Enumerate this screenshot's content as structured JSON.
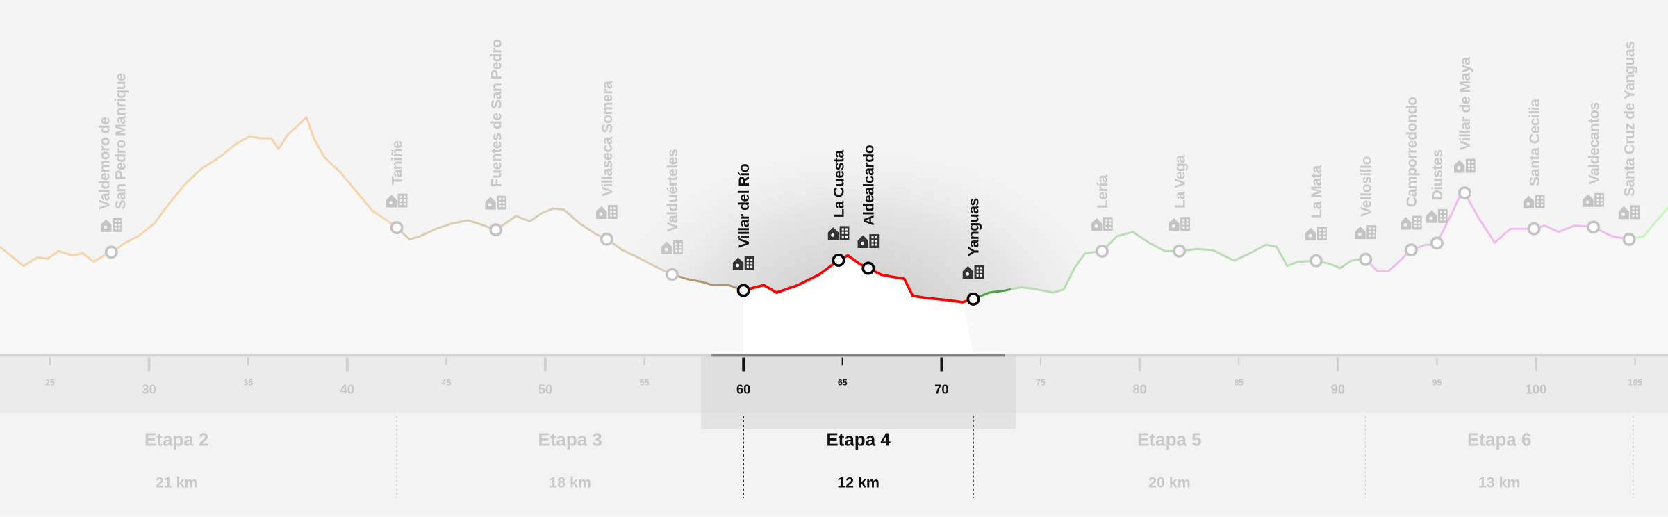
{
  "chart_data": {
    "type": "area",
    "xlabel": "",
    "ylabel": "",
    "xlim": [
      22.6,
      106.6
    ],
    "x_ticks_major": [
      30,
      40,
      50,
      60,
      70,
      80,
      90,
      100
    ],
    "x_ticks_minor": [
      25,
      35,
      45,
      55,
      65,
      75,
      85,
      95,
      105
    ],
    "x_tick_labels": [
      "25",
      "30",
      "35",
      "40",
      "45",
      "50",
      "55",
      "60",
      "65",
      "70",
      "75",
      "80",
      "85",
      "90",
      "95",
      "100",
      "105"
    ],
    "highlighted_stage": "Etapa 4",
    "stages": [
      {
        "name": "Etapa 2",
        "distance": "21 km",
        "km_end": 42.5,
        "color": "#f6d5ad"
      },
      {
        "name": "Etapa 3",
        "distance": "18 km",
        "km_start": 42.5,
        "km_end": 60.0,
        "color": "#d9cdb6"
      },
      {
        "name": "Etapa 4",
        "distance": "12 km",
        "km_start": 60.0,
        "km_end": 71.6,
        "color": "#ff0000"
      },
      {
        "name": "Etapa 5",
        "distance": "20 km",
        "km_start": 71.6,
        "km_end": 91.4,
        "color": "#bcdcb8"
      },
      {
        "name": "Etapa 6",
        "distance": "13 km",
        "km_start": 91.4,
        "km_end": 104.9,
        "color": "#f3bcf0"
      }
    ],
    "villages": [
      {
        "name": "Valdemoro de",
        "name2": "San Pedro Manrique",
        "km": 28.1,
        "highlight": false
      },
      {
        "name": "Taniñe",
        "km": 42.5,
        "highlight": false
      },
      {
        "name": "Fuentes de San Pedro",
        "km": 47.5,
        "highlight": false
      },
      {
        "name": "Villaseca Somera",
        "km": 53.1,
        "highlight": false
      },
      {
        "name": "Valduérteles",
        "km": 56.4,
        "highlight": false
      },
      {
        "name": "Villar del Río",
        "km": 60.0,
        "highlight": true
      },
      {
        "name": "La Cuesta",
        "km": 64.8,
        "highlight": true
      },
      {
        "name": "Aldealcardo",
        "km": 66.3,
        "highlight": true
      },
      {
        "name": "Yanguas",
        "km": 71.6,
        "highlight": true
      },
      {
        "name": "Lería",
        "km": 78.1,
        "highlight": false
      },
      {
        "name": "La Vega",
        "km": 82.0,
        "highlight": false
      },
      {
        "name": "La Mata",
        "km": 88.9,
        "highlight": false
      },
      {
        "name": "Vellosillo",
        "km": 91.4,
        "highlight": false
      },
      {
        "name": "Camporredondo",
        "km": 93.7,
        "highlight": false
      },
      {
        "name": "Diustes",
        "km": 95.0,
        "highlight": false
      },
      {
        "name": "Villar de Maya",
        "km": 96.4,
        "highlight": false
      },
      {
        "name": "Santa Cecilia",
        "km": 99.9,
        "highlight": false
      },
      {
        "name": "Valdecantos",
        "km": 102.9,
        "highlight": false
      },
      {
        "name": "Santa Cruz de Yanguas",
        "km": 104.7,
        "highlight": false
      }
    ],
    "village_icon": "house-and-building-icon",
    "colors": {
      "active_text": "#111111",
      "inactive_text": "#c9c9c9",
      "after_route": "#c8f5c0"
    }
  }
}
